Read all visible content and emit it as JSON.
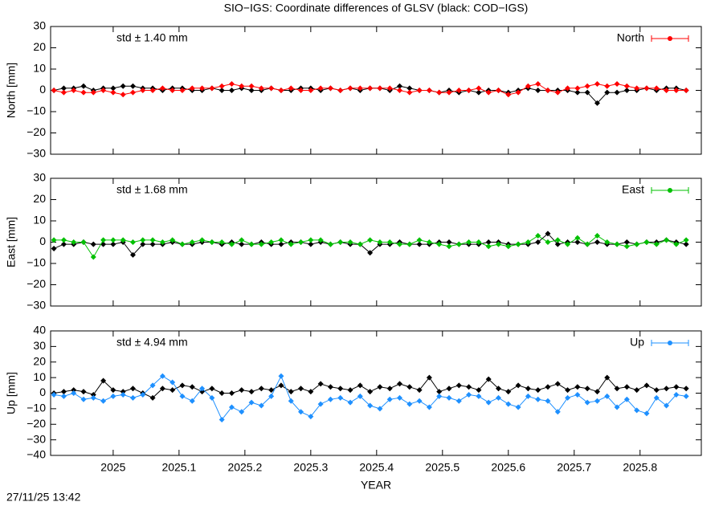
{
  "title": "SIO−IGS: Coordinate differences of GLSV (black: COD−IGS)",
  "timestamp": "27/11/25 13:42",
  "chart_data": [
    {
      "type": "line",
      "ylabel": "North [mm]",
      "annotation": "std ± 1.40 mm",
      "legend": "top-right",
      "xlim": [
        2024.905,
        2025.893
      ],
      "ylim": [
        -30,
        30
      ],
      "yticks": [
        {
          "value": -30,
          "label": "−30"
        },
        {
          "value": -20,
          "label": "−20"
        },
        {
          "value": -10,
          "label": "−10"
        },
        0,
        10,
        20,
        30
      ],
      "x": [
        2024.91,
        2024.925,
        2024.94,
        2024.955,
        2024.97,
        2024.985,
        2025.0,
        2025.015,
        2025.03,
        2025.045,
        2025.06,
        2025.075,
        2025.09,
        2025.105,
        2025.12,
        2025.135,
        2025.15,
        2025.165,
        2025.18,
        2025.195,
        2025.21,
        2025.225,
        2025.24,
        2025.255,
        2025.27,
        2025.285,
        2025.3,
        2025.315,
        2025.33,
        2025.345,
        2025.36,
        2025.375,
        2025.39,
        2025.405,
        2025.42,
        2025.435,
        2025.45,
        2025.465,
        2025.48,
        2025.495,
        2025.51,
        2025.525,
        2025.54,
        2025.555,
        2025.57,
        2025.585,
        2025.6,
        2025.615,
        2025.63,
        2025.645,
        2025.66,
        2025.675,
        2025.69,
        2025.705,
        2025.72,
        2025.735,
        2025.75,
        2025.765,
        2025.78,
        2025.795,
        2025.81,
        2025.825,
        2025.84,
        2025.855,
        2025.87
      ],
      "series": [
        {
          "color": "#000000",
          "values": [
            0,
            1,
            1,
            2,
            0,
            1,
            1,
            2,
            2,
            1,
            1,
            0,
            1,
            1,
            0,
            0,
            1,
            0,
            0,
            1,
            0,
            0,
            1,
            0,
            0,
            1,
            1,
            0,
            1,
            0,
            1,
            0,
            1,
            1,
            0,
            2,
            1,
            0,
            0,
            -1,
            0,
            -1,
            0,
            -1,
            0,
            0,
            -1,
            0,
            1,
            0,
            0,
            0,
            0,
            -1,
            -1,
            -6,
            -1,
            -1,
            0,
            0,
            1,
            0,
            1,
            1,
            0
          ]
        },
        {
          "name": "North",
          "color": "#ff0000",
          "values": [
            0,
            -1,
            0,
            -1,
            -1,
            0,
            -1,
            -2,
            -1,
            0,
            0,
            1,
            0,
            0,
            1,
            1,
            1,
            2,
            3,
            2,
            2,
            1,
            1,
            0,
            1,
            0,
            0,
            1,
            1,
            0,
            1,
            1,
            1,
            1,
            1,
            0,
            -1,
            0,
            0,
            -1,
            -1,
            0,
            0,
            1,
            -1,
            0,
            -2,
            -1,
            2,
            3,
            0,
            -1,
            1,
            1,
            2,
            3,
            2,
            3,
            2,
            1,
            1,
            1,
            0,
            0,
            0
          ]
        }
      ]
    },
    {
      "type": "line",
      "ylabel": "East [mm]",
      "annotation": "std ± 1.68 mm",
      "legend": "top-right",
      "xlim": [
        2024.905,
        2025.893
      ],
      "ylim": [
        -30,
        30
      ],
      "yticks": [
        {
          "value": -30,
          "label": "−30"
        },
        {
          "value": -20,
          "label": "−20"
        },
        {
          "value": -10,
          "label": "−10"
        },
        0,
        10,
        20,
        30
      ],
      "x": [
        2024.91,
        2024.925,
        2024.94,
        2024.955,
        2024.97,
        2024.985,
        2025.0,
        2025.015,
        2025.03,
        2025.045,
        2025.06,
        2025.075,
        2025.09,
        2025.105,
        2025.12,
        2025.135,
        2025.15,
        2025.165,
        2025.18,
        2025.195,
        2025.21,
        2025.225,
        2025.24,
        2025.255,
        2025.27,
        2025.285,
        2025.3,
        2025.315,
        2025.33,
        2025.345,
        2025.36,
        2025.375,
        2025.39,
        2025.405,
        2025.42,
        2025.435,
        2025.45,
        2025.465,
        2025.48,
        2025.495,
        2025.51,
        2025.525,
        2025.54,
        2025.555,
        2025.57,
        2025.585,
        2025.6,
        2025.615,
        2025.63,
        2025.645,
        2025.66,
        2025.675,
        2025.69,
        2025.705,
        2025.72,
        2025.735,
        2025.75,
        2025.765,
        2025.78,
        2025.795,
        2025.81,
        2025.825,
        2025.84,
        2025.855,
        2025.87
      ],
      "series": [
        {
          "color": "#000000",
          "values": [
            -3,
            -1,
            -1,
            0,
            -1,
            -1,
            -1,
            0,
            -6,
            -1,
            -1,
            -1,
            0,
            -1,
            -1,
            0,
            0,
            -1,
            0,
            -1,
            -1,
            0,
            -1,
            -1,
            0,
            0,
            -1,
            0,
            -1,
            0,
            -1,
            -1,
            -5,
            -1,
            -1,
            0,
            -1,
            -1,
            -1,
            0,
            0,
            -1,
            -1,
            -1,
            0,
            0,
            -1,
            -1,
            -1,
            0,
            4,
            -1,
            0,
            0,
            -1,
            0,
            -1,
            -1,
            0,
            -1,
            0,
            0,
            1,
            0,
            -1
          ]
        },
        {
          "name": "East",
          "color": "#00c000",
          "values": [
            1,
            1,
            0,
            0,
            -7,
            1,
            1,
            1,
            0,
            1,
            1,
            0,
            1,
            -1,
            0,
            1,
            0,
            0,
            -1,
            1,
            -1,
            -1,
            0,
            1,
            -1,
            0,
            1,
            1,
            -1,
            0,
            0,
            -1,
            1,
            0,
            0,
            -1,
            -1,
            1,
            0,
            -1,
            -2,
            -1,
            0,
            0,
            -2,
            -1,
            -2,
            -1,
            0,
            3,
            0,
            1,
            -1,
            2,
            -1,
            3,
            0,
            -1,
            -2,
            -1,
            0,
            -1,
            1,
            -1,
            1
          ]
        }
      ]
    },
    {
      "type": "line",
      "ylabel": "Up [mm]",
      "xlabel": "YEAR",
      "annotation": "std ± 4.94 mm",
      "legend": "top-right",
      "xlim": [
        2024.905,
        2025.893
      ],
      "ylim": [
        -40,
        40
      ],
      "yticks": [
        {
          "value": -40,
          "label": "−40"
        },
        {
          "value": -30,
          "label": "−30"
        },
        {
          "value": -20,
          "label": "−20"
        },
        {
          "value": -10,
          "label": "−10"
        },
        0,
        10,
        20,
        30,
        40
      ],
      "xticks": [
        2025,
        2025.1,
        2025.2,
        2025.3,
        2025.4,
        2025.5,
        2025.6,
        2025.7,
        2025.8
      ],
      "x": [
        2024.91,
        2024.925,
        2024.94,
        2024.955,
        2024.97,
        2024.985,
        2025.0,
        2025.015,
        2025.03,
        2025.045,
        2025.06,
        2025.075,
        2025.09,
        2025.105,
        2025.12,
        2025.135,
        2025.15,
        2025.165,
        2025.18,
        2025.195,
        2025.21,
        2025.225,
        2025.24,
        2025.255,
        2025.27,
        2025.285,
        2025.3,
        2025.315,
        2025.33,
        2025.345,
        2025.36,
        2025.375,
        2025.39,
        2025.405,
        2025.42,
        2025.435,
        2025.45,
        2025.465,
        2025.48,
        2025.495,
        2025.51,
        2025.525,
        2025.54,
        2025.555,
        2025.57,
        2025.585,
        2025.6,
        2025.615,
        2025.63,
        2025.645,
        2025.66,
        2025.675,
        2025.69,
        2025.705,
        2025.72,
        2025.735,
        2025.75,
        2025.765,
        2025.78,
        2025.795,
        2025.81,
        2025.825,
        2025.84,
        2025.855,
        2025.87
      ],
      "series": [
        {
          "color": "#000000",
          "values": [
            0,
            1,
            2,
            1,
            -1,
            8,
            2,
            1,
            3,
            0,
            -3,
            3,
            2,
            5,
            4,
            1,
            3,
            0,
            0,
            2,
            1,
            3,
            2,
            5,
            1,
            3,
            1,
            6,
            4,
            3,
            2,
            5,
            1,
            4,
            3,
            6,
            4,
            2,
            10,
            1,
            3,
            5,
            4,
            2,
            9,
            3,
            1,
            5,
            3,
            2,
            4,
            6,
            2,
            4,
            3,
            1,
            10,
            3,
            4,
            2,
            5,
            2,
            3,
            4,
            3
          ]
        },
        {
          "name": "Up",
          "color": "#1e90ff",
          "values": [
            -1,
            -2,
            0,
            -4,
            -3,
            -5,
            -2,
            -1,
            -3,
            -1,
            5,
            11,
            7,
            -2,
            -5,
            3,
            -3,
            -17,
            -9,
            -12,
            -6,
            -8,
            -2,
            11,
            -5,
            -12,
            -15,
            -7,
            -4,
            -3,
            -6,
            -2,
            -8,
            -10,
            -4,
            -3,
            -7,
            -5,
            -9,
            -2,
            -3,
            -5,
            -1,
            -2,
            -6,
            -3,
            -7,
            -9,
            -2,
            -4,
            -5,
            -12,
            -3,
            -1,
            -6,
            -5,
            -2,
            -9,
            -4,
            -11,
            -13,
            -3,
            -8,
            -1,
            -2
          ]
        }
      ]
    }
  ]
}
